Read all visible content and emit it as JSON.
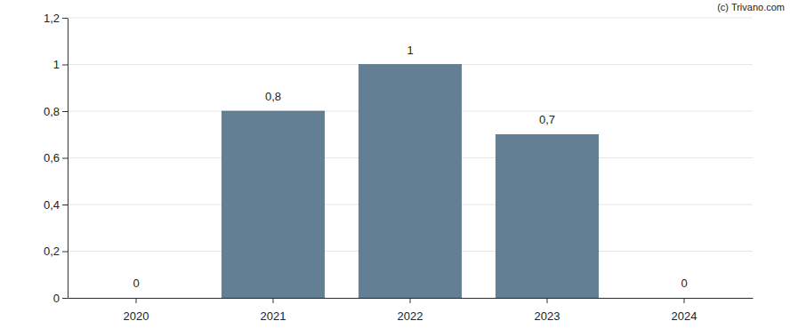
{
  "chart_data": {
    "type": "bar",
    "annotations": [
      "(c) Trivano.com"
    ],
    "categories": [
      "2020",
      "2021",
      "2022",
      "2023",
      "2024"
    ],
    "values": [
      0,
      0.8,
      1,
      0.7,
      0
    ],
    "value_labels": [
      "0",
      "0,8",
      "1",
      "0,7",
      "0"
    ],
    "data_labels": true,
    "color": "#627f93",
    "ylim": [
      0,
      1.2
    ],
    "yticks": [
      0,
      {
        "value": 0.2,
        "label": "0,2"
      },
      {
        "value": 0.4,
        "label": "0,4"
      },
      {
        "value": 0.6,
        "label": "0,6"
      },
      {
        "value": 0.8,
        "label": "0,8"
      },
      1,
      {
        "value": 1.2,
        "label": "1,2"
      }
    ],
    "grid": true
  }
}
